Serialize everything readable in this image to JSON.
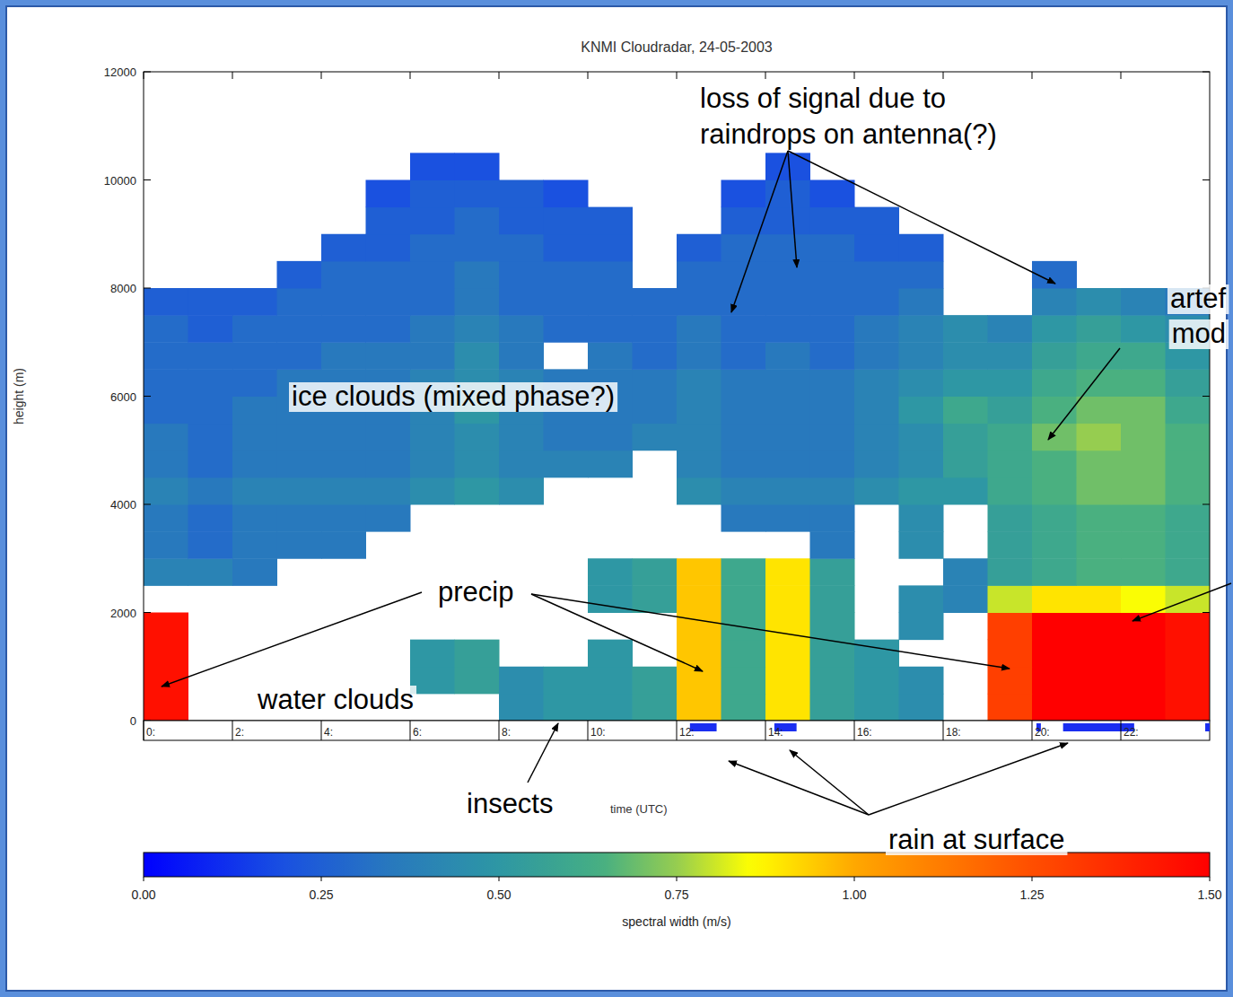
{
  "chart_data": {
    "type": "heatmap",
    "title": "KNMI Cloudradar, 24-05-2003",
    "x_label": "time (UTC)",
    "y_label": "height (m)",
    "xlim": [
      0,
      24
    ],
    "xticks": [
      {
        "value": 0,
        "label": "0:"
      },
      {
        "value": 2,
        "label": "2:"
      },
      {
        "value": 4,
        "label": "4:"
      },
      {
        "value": 6,
        "label": "6:"
      },
      {
        "value": 8,
        "label": "8:"
      },
      {
        "value": 10,
        "label": "10:"
      },
      {
        "value": 12,
        "label": "12:"
      },
      {
        "value": 14,
        "label": "14:"
      },
      {
        "value": 16,
        "label": "16:"
      },
      {
        "value": 18,
        "label": "18:"
      },
      {
        "value": 20,
        "label": "20:"
      },
      {
        "value": 22,
        "label": "22:"
      }
    ],
    "ylim": [
      0,
      12000
    ],
    "yticks": [
      0,
      2000,
      4000,
      6000,
      8000,
      10000,
      12000
    ],
    "x_bins": [
      0,
      1,
      2,
      3,
      4,
      5,
      6,
      7,
      8,
      9,
      10,
      11,
      12,
      13,
      14,
      15,
      16,
      17,
      18,
      19,
      20,
      21,
      22,
      23,
      24
    ],
    "y_bins": [
      0,
      500,
      1000,
      1500,
      2000,
      2500,
      3000,
      3500,
      4000,
      4500,
      5000,
      5500,
      6000,
      6500,
      7000,
      7500,
      8000,
      8500,
      9000,
      9500,
      10000,
      10500,
      11000,
      11500,
      12000
    ],
    "cells": [
      [
        1.45,
        null,
        null,
        null,
        null,
        null,
        null,
        null,
        0.45,
        0.5,
        0.5,
        0.55,
        0.95,
        0.6,
        0.9,
        0.55,
        0.5,
        0.45,
        null,
        1.3,
        1.5,
        1.5,
        1.5,
        1.45
      ],
      [
        1.45,
        null,
        null,
        null,
        null,
        null,
        0.5,
        0.55,
        0.45,
        0.5,
        0.5,
        0.55,
        0.95,
        0.6,
        0.9,
        0.55,
        0.5,
        0.45,
        null,
        1.3,
        1.5,
        1.5,
        1.5,
        1.45
      ],
      [
        1.45,
        null,
        null,
        null,
        null,
        null,
        0.5,
        0.55,
        null,
        null,
        0.5,
        null,
        0.95,
        0.6,
        0.9,
        0.55,
        0.5,
        null,
        null,
        1.3,
        1.5,
        1.5,
        1.5,
        1.45
      ],
      [
        1.45,
        null,
        null,
        null,
        null,
        null,
        null,
        null,
        null,
        null,
        null,
        null,
        0.95,
        0.6,
        0.9,
        0.55,
        null,
        0.45,
        null,
        1.3,
        1.5,
        1.5,
        1.5,
        1.45
      ],
      [
        null,
        null,
        null,
        null,
        null,
        null,
        null,
        null,
        null,
        null,
        0.5,
        0.55,
        0.95,
        0.6,
        0.9,
        0.55,
        null,
        0.45,
        0.4,
        0.8,
        0.9,
        0.9,
        0.85,
        0.8
      ],
      [
        0.4,
        0.4,
        0.35,
        null,
        null,
        null,
        null,
        null,
        null,
        null,
        0.5,
        0.55,
        0.95,
        0.6,
        0.9,
        0.55,
        null,
        null,
        0.4,
        0.55,
        0.6,
        0.65,
        0.65,
        0.6
      ],
      [
        0.35,
        0.3,
        0.35,
        0.35,
        0.35,
        null,
        null,
        null,
        null,
        null,
        null,
        null,
        null,
        null,
        null,
        0.35,
        null,
        0.45,
        null,
        0.55,
        0.6,
        0.65,
        0.65,
        0.6
      ],
      [
        0.35,
        0.3,
        0.35,
        0.35,
        0.35,
        0.35,
        null,
        null,
        null,
        null,
        null,
        null,
        null,
        0.35,
        0.35,
        0.35,
        null,
        0.45,
        null,
        0.55,
        0.6,
        0.65,
        0.65,
        0.6
      ],
      [
        0.4,
        0.35,
        0.4,
        0.4,
        0.4,
        0.4,
        0.45,
        0.5,
        0.45,
        null,
        null,
        null,
        0.45,
        0.4,
        0.4,
        0.4,
        0.45,
        0.5,
        0.5,
        0.6,
        0.65,
        0.7,
        0.7,
        0.65
      ],
      [
        0.35,
        0.3,
        0.35,
        0.35,
        0.35,
        0.35,
        0.4,
        0.45,
        0.4,
        0.4,
        0.4,
        null,
        0.4,
        0.35,
        0.35,
        0.35,
        0.4,
        0.45,
        0.55,
        0.6,
        0.65,
        0.7,
        0.7,
        0.65
      ],
      [
        0.35,
        0.3,
        0.35,
        0.35,
        0.35,
        0.35,
        0.4,
        0.45,
        0.4,
        0.35,
        0.35,
        0.4,
        0.4,
        0.35,
        0.35,
        0.35,
        0.4,
        0.45,
        0.55,
        0.6,
        0.7,
        0.75,
        0.7,
        0.65
      ],
      [
        0.3,
        0.3,
        0.35,
        0.35,
        0.35,
        0.35,
        0.4,
        0.5,
        0.4,
        0.35,
        0.35,
        0.35,
        0.4,
        0.35,
        0.35,
        0.35,
        0.4,
        0.5,
        0.6,
        0.55,
        0.65,
        0.7,
        0.7,
        0.6
      ],
      [
        0.3,
        0.3,
        0.3,
        0.35,
        0.35,
        0.35,
        0.4,
        0.45,
        0.4,
        0.35,
        0.35,
        0.35,
        0.4,
        0.35,
        0.35,
        0.35,
        0.4,
        0.45,
        0.5,
        0.5,
        0.6,
        0.65,
        0.65,
        0.55
      ],
      [
        0.3,
        0.3,
        0.3,
        0.3,
        0.35,
        0.35,
        0.35,
        0.45,
        0.35,
        null,
        0.35,
        0.3,
        0.35,
        0.3,
        0.35,
        0.3,
        0.35,
        0.4,
        0.45,
        0.45,
        0.55,
        0.6,
        0.6,
        0.5
      ],
      [
        0.3,
        0.25,
        0.3,
        0.3,
        0.3,
        0.3,
        0.35,
        0.4,
        0.35,
        0.3,
        0.3,
        0.3,
        0.35,
        0.3,
        0.3,
        0.3,
        0.35,
        0.4,
        0.45,
        0.4,
        0.5,
        0.55,
        0.5,
        0.45
      ],
      [
        0.25,
        0.25,
        0.25,
        0.3,
        0.3,
        0.3,
        0.3,
        0.35,
        0.3,
        0.3,
        0.3,
        0.3,
        0.3,
        0.3,
        0.3,
        0.3,
        0.3,
        0.35,
        null,
        null,
        0.4,
        0.45,
        0.4,
        0.35
      ],
      [
        null,
        null,
        null,
        0.25,
        0.3,
        0.3,
        0.3,
        0.35,
        0.3,
        0.3,
        0.3,
        null,
        0.3,
        0.3,
        0.3,
        0.3,
        0.3,
        0.3,
        null,
        null,
        0.3,
        null,
        null,
        null
      ],
      [
        null,
        null,
        null,
        null,
        0.25,
        0.25,
        0.3,
        0.3,
        0.3,
        0.25,
        0.25,
        null,
        0.25,
        0.3,
        0.3,
        0.3,
        0.25,
        0.25,
        null,
        null,
        null,
        null,
        null,
        null
      ],
      [
        null,
        null,
        null,
        null,
        null,
        0.25,
        0.25,
        0.3,
        0.25,
        0.25,
        0.25,
        null,
        null,
        0.25,
        0.25,
        0.25,
        0.25,
        null,
        null,
        null,
        null,
        null,
        null,
        null
      ],
      [
        null,
        null,
        null,
        null,
        null,
        0.2,
        0.25,
        0.25,
        0.25,
        0.2,
        null,
        null,
        null,
        0.2,
        0.25,
        0.2,
        null,
        null,
        null,
        null,
        null,
        null,
        null,
        null
      ],
      [
        null,
        null,
        null,
        null,
        null,
        null,
        0.2,
        0.2,
        null,
        null,
        null,
        null,
        null,
        null,
        0.2,
        null,
        null,
        null,
        null,
        null,
        null,
        null,
        null,
        null
      ],
      [
        null,
        null,
        null,
        null,
        null,
        null,
        null,
        null,
        null,
        null,
        null,
        null,
        null,
        null,
        null,
        null,
        null,
        null,
        null,
        null,
        null,
        null,
        null,
        null
      ],
      [
        null,
        null,
        null,
        null,
        null,
        null,
        null,
        null,
        null,
        null,
        null,
        null,
        null,
        null,
        null,
        null,
        null,
        null,
        null,
        null,
        null,
        null,
        null,
        null
      ],
      [
        null,
        null,
        null,
        null,
        null,
        null,
        null,
        null,
        null,
        null,
        null,
        null,
        null,
        null,
        null,
        null,
        null,
        null,
        null,
        null,
        null,
        null,
        null,
        null
      ]
    ],
    "colorbar": {
      "label": "spectral width (m/s)",
      "range": [
        0,
        1.5
      ],
      "ticks": [
        {
          "value": 0,
          "label": "0.00"
        },
        {
          "value": 0.25,
          "label": "0.25"
        },
        {
          "value": 0.5,
          "label": "0.50"
        },
        {
          "value": 0.75,
          "label": "0.75"
        },
        {
          "value": 1,
          "label": "1.00"
        },
        {
          "value": 1.25,
          "label": "1.25"
        },
        {
          "value": 1.5,
          "label": "1.50"
        }
      ]
    },
    "rain_at_surface": [
      [
        12.3,
        12.9
      ],
      [
        14.2,
        14.7
      ],
      [
        20.1,
        20.2
      ],
      [
        20.7,
        22.3
      ],
      [
        23.9,
        24
      ]
    ],
    "annotations": [
      "loss of signal due to",
      "raindrops on antenna(?)",
      "ice clouds (mixed phase?)",
      "precip",
      "water clouds",
      "insects",
      "rain at surface",
      "artef",
      "mod"
    ]
  }
}
